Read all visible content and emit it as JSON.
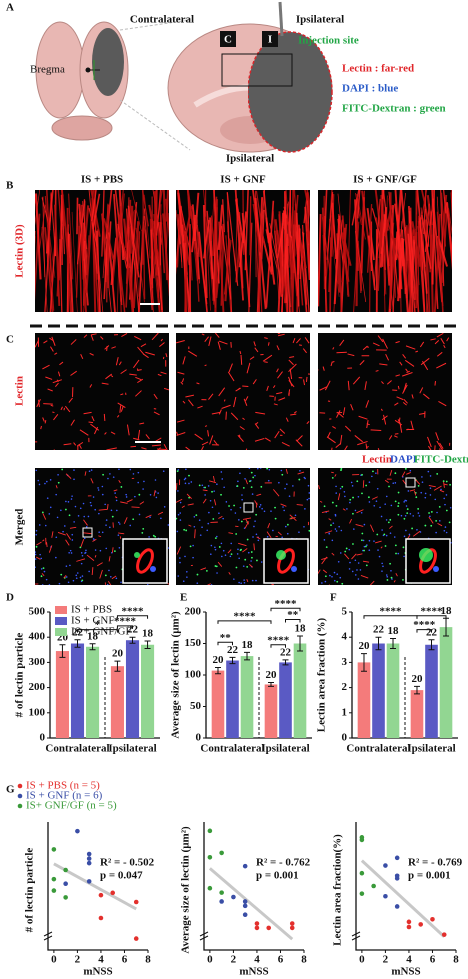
{
  "panel_labels": [
    "A",
    "B",
    "C",
    "D",
    "E",
    "F",
    "G"
  ],
  "panel_a": {
    "contralateral": "Contralateral",
    "ipsilateral": "Ipsilateral",
    "injection_site": "Injection site",
    "bregma": "Bregma",
    "box_c": "C",
    "box_i": "I",
    "legend": [
      "Lectin : far-red",
      "DAPI : blue",
      "FITC-Dextran : green"
    ]
  },
  "images": {
    "heading": "Ipsilateral",
    "columns": [
      "IS + PBS",
      "IS + GNF",
      "IS + GNF/GF"
    ],
    "row_b": "Lectin (3D)",
    "row_c": "Lectin",
    "row_merged": "Merged",
    "stain_legend": [
      "Lectin",
      "DAPI",
      "FITC-Dextran"
    ]
  },
  "chart_data": [
    {
      "type": "bar",
      "ylabel": "# of lectin particle",
      "categories": [
        "Contralateral",
        "Ipsilateral"
      ],
      "legend": "upper left",
      "series": [
        {
          "name": "IS + PBS",
          "color": "#f47b7b",
          "values": [
            345,
            285
          ],
          "errors": [
            25,
            20
          ],
          "n": [
            20,
            20
          ]
        },
        {
          "name": "IS + GNF",
          "color": "#5a5ac4",
          "values": [
            375,
            388
          ],
          "errors": [
            15,
            12
          ],
          "n": [
            22,
            22
          ]
        },
        {
          "name": "IS + GNF/GF",
          "color": "#92d692",
          "values": [
            362,
            370
          ],
          "errors": [
            12,
            15
          ],
          "n": [
            18,
            18
          ]
        }
      ],
      "ylim": [
        0,
        500
      ],
      "yticks": [
        0,
        100,
        200,
        300,
        400,
        500
      ],
      "annotations": [
        "****",
        "*",
        "****"
      ]
    },
    {
      "type": "bar",
      "ylabel": "Average size of lectin (µm²)",
      "categories": [
        "Contralateral",
        "Ipsilateral"
      ],
      "series": [
        {
          "color": "#f47b7b",
          "values": [
            107,
            85
          ],
          "errors": [
            5,
            3
          ],
          "n": [
            20,
            20
          ]
        },
        {
          "color": "#5a5ac4",
          "values": [
            123,
            120
          ],
          "errors": [
            5,
            4
          ],
          "n": [
            22,
            22
          ]
        },
        {
          "color": "#92d692",
          "values": [
            130,
            150
          ],
          "errors": [
            6,
            12
          ],
          "n": [
            18,
            18
          ]
        }
      ],
      "ylim": [
        0,
        200
      ],
      "yticks": [
        0,
        50,
        100,
        150,
        200
      ],
      "annotations": [
        "****",
        "****",
        "**",
        "**",
        "****"
      ]
    },
    {
      "type": "bar",
      "ylabel": "Lectin area fraction (%)",
      "categories": [
        "Contralateral",
        "Ipsilateral"
      ],
      "series": [
        {
          "color": "#f47b7b",
          "values": [
            3.0,
            1.9
          ],
          "errors": [
            0.35,
            0.15
          ],
          "n": [
            20,
            20
          ]
        },
        {
          "color": "#5a5ac4",
          "values": [
            3.75,
            3.7
          ],
          "errors": [
            0.25,
            0.2
          ],
          "n": [
            22,
            22
          ]
        },
        {
          "color": "#92d692",
          "values": [
            3.75,
            4.4
          ],
          "errors": [
            0.2,
            0.35
          ],
          "n": [
            18,
            18
          ]
        }
      ],
      "ylim": [
        0,
        5
      ],
      "yticks": [
        0,
        1,
        2,
        3,
        4,
        5
      ],
      "annotations": [
        "****",
        "****",
        "****"
      ]
    },
    {
      "type": "scatter",
      "ylabel": "# of lectin particle",
      "xlabel": "mNSS",
      "legend": "top",
      "series": [
        {
          "name": "IS + PBS (n = 5)",
          "color": "#e3302d",
          "x": [
            4,
            4,
            5,
            7,
            7
          ],
          "values": [
            270,
            320,
            325,
            305,
            225
          ]
        },
        {
          "name": "IS + GNF (n = 6)",
          "color": "#3a4ea6",
          "x": [
            2,
            3,
            3,
            3,
            1,
            3
          ],
          "values": [
            460,
            410,
            400,
            390,
            345,
            350
          ]
        },
        {
          "name": "IS+ GNF/GF (n = 5)",
          "color": "#3a9a3a",
          "x": [
            0,
            0,
            0,
            1,
            1
          ],
          "values": [
            420,
            355,
            330,
            375,
            315
          ]
        }
      ],
      "xlim": [
        -0.5,
        8
      ],
      "xticks": [
        0,
        2,
        4,
        6,
        8
      ],
      "ylim": [
        200,
        480
      ],
      "annotations": [
        "R² = - 0.502",
        "p = 0.047"
      ]
    },
    {
      "type": "scatter",
      "ylabel": "Average size of lectin (µm²)",
      "xlabel": "mNSS",
      "series": [
        {
          "color": "#e3302d",
          "x": [
            4,
            5,
            4,
            7,
            7
          ],
          "values": [
            85,
            85,
            90,
            85,
            90
          ]
        },
        {
          "color": "#3a4ea6",
          "x": [
            1,
            2,
            3,
            3,
            3,
            3
          ],
          "values": [
            115,
            120,
            155,
            115,
            110,
            100
          ]
        },
        {
          "color": "#3a9a3a",
          "x": [
            0,
            0,
            1,
            0,
            1
          ],
          "values": [
            195,
            165,
            170,
            130,
            125
          ]
        }
      ],
      "xlim": [
        -0.5,
        8
      ],
      "xticks": [
        0,
        2,
        4,
        6,
        8
      ],
      "ylim": [
        60,
        205
      ],
      "annotations": [
        "R² = - 0.762",
        "p = 0.001"
      ]
    },
    {
      "type": "scatter",
      "ylabel": "Lectin area fraction(%)",
      "xlabel": "mNSS",
      "series": [
        {
          "color": "#e3302d",
          "x": [
            4,
            4,
            5,
            6,
            7
          ],
          "values": [
            2.1,
            1.9,
            2.0,
            2.2,
            1.6
          ]
        },
        {
          "color": "#3a4ea6",
          "x": [
            2,
            3,
            3,
            3,
            3,
            2
          ],
          "values": [
            4.3,
            4.6,
            3.9,
            3.8,
            2.7,
            3.1
          ]
        },
        {
          "color": "#3a9a3a",
          "x": [
            0,
            0,
            0,
            0,
            1
          ],
          "values": [
            5.4,
            5.3,
            4.0,
            3.2,
            3.5
          ]
        }
      ],
      "xlim": [
        -0.5,
        8
      ],
      "xticks": [
        0,
        2,
        4,
        6,
        8
      ],
      "ylim": [
        1,
        6
      ],
      "annotations": [
        "R² = - 0.769",
        "p = 0.001"
      ]
    }
  ]
}
